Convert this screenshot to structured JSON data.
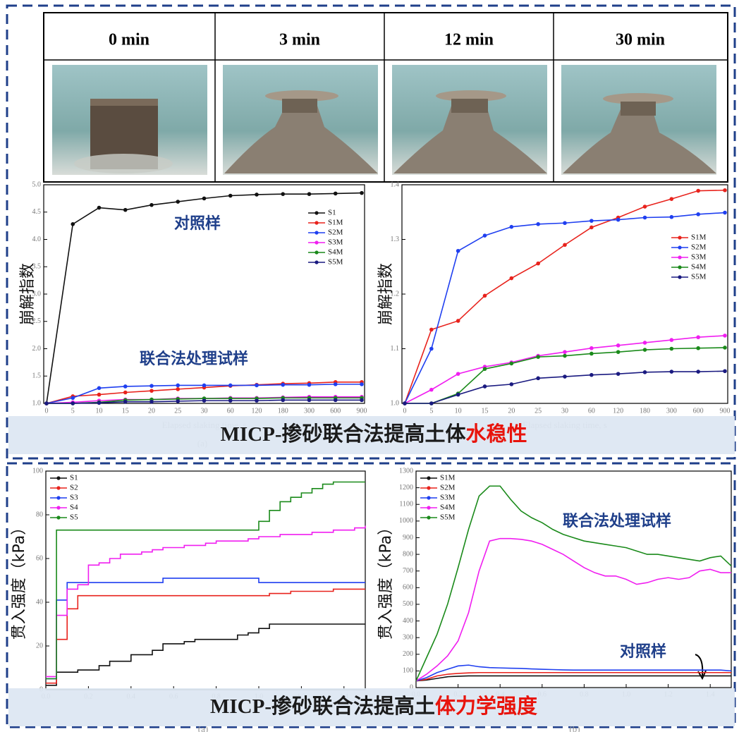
{
  "table": {
    "headers": [
      "0 min",
      "3 min",
      "12 min",
      "30 min"
    ]
  },
  "banners": [
    {
      "parts": [
        "MICP-掺砂联合法提高土体",
        "水稳性"
      ]
    },
    {
      "parts": [
        "MICP-掺砂联合法提高土",
        "体力学强度"
      ]
    }
  ],
  "chart_data": [
    {
      "type": "line",
      "ylabel": "崩解指数",
      "xlabel": "Elapsed slaking time, s",
      "caption": "(a)",
      "categories": [
        "0",
        "5",
        "10",
        "15",
        "20",
        "25",
        "30",
        "60",
        "120",
        "180",
        "300",
        "600",
        "900"
      ],
      "ylim": [
        1,
        5
      ],
      "yticks": [
        {
          "value": 1,
          "label": "1.0"
        },
        1.5,
        {
          "value": 2,
          "label": "2.0"
        },
        2.5,
        {
          "value": 3,
          "label": "3.0"
        },
        3.5,
        {
          "value": 4,
          "label": "4.0"
        },
        4.5,
        {
          "value": 5,
          "label": "5.0"
        }
      ],
      "legend": "upper right",
      "markers": true,
      "annotations": [
        "对照样",
        "联合法处理试样"
      ],
      "series": [
        {
          "name": "S1",
          "color": "#111111",
          "values": [
            1.0,
            4.28,
            4.58,
            4.54,
            4.63,
            4.69,
            4.75,
            4.8,
            4.82,
            4.83,
            4.83,
            4.84,
            4.85
          ]
        },
        {
          "name": "S1M",
          "color": "#e8221c",
          "values": [
            1.0,
            1.13,
            1.16,
            1.2,
            1.23,
            1.26,
            1.29,
            1.32,
            1.34,
            1.36,
            1.37,
            1.39,
            1.39
          ]
        },
        {
          "name": "S2M",
          "color": "#1f3ff0",
          "values": [
            1.0,
            1.1,
            1.28,
            1.31,
            1.32,
            1.33,
            1.33,
            1.33,
            1.33,
            1.34,
            1.34,
            1.35,
            1.35
          ]
        },
        {
          "name": "S3M",
          "color": "#f01ef0",
          "values": [
            1.0,
            1.02,
            1.05,
            1.07,
            1.07,
            1.09,
            1.09,
            1.1,
            1.1,
            1.11,
            1.12,
            1.12,
            1.12
          ]
        },
        {
          "name": "S4M",
          "color": "#1a8a1a",
          "values": [
            1.0,
            1.0,
            1.02,
            1.06,
            1.07,
            1.08,
            1.09,
            1.09,
            1.09,
            1.1,
            1.1,
            1.1,
            1.1
          ]
        },
        {
          "name": "S5M",
          "color": "#1a1a80",
          "values": [
            1.0,
            1.0,
            1.01,
            1.03,
            1.03,
            1.04,
            1.05,
            1.05,
            1.05,
            1.06,
            1.06,
            1.06,
            1.06
          ]
        }
      ]
    },
    {
      "type": "line",
      "ylabel": "崩解指数",
      "xlabel": "Elapsed slaking time, s",
      "categories": [
        "0",
        "5",
        "10",
        "15",
        "20",
        "25",
        "30",
        "60",
        "120",
        "180",
        "300",
        "600",
        "900"
      ],
      "ylim": [
        1,
        1.4
      ],
      "yticks": [
        {
          "value": 1,
          "label": "1.0"
        },
        1.1,
        1.2,
        1.3,
        1.4
      ],
      "legend": "center right",
      "markers": true,
      "series": [
        {
          "name": "S1M",
          "color": "#e8221c",
          "values": [
            1.0,
            1.135,
            1.151,
            1.197,
            1.229,
            1.256,
            1.29,
            1.322,
            1.34,
            1.36,
            1.374,
            1.389,
            1.39
          ]
        },
        {
          "name": "S2M",
          "color": "#1f3ff0",
          "values": [
            1.0,
            1.1,
            1.279,
            1.307,
            1.323,
            1.328,
            1.33,
            1.334,
            1.336,
            1.34,
            1.341,
            1.346,
            1.349
          ]
        },
        {
          "name": "S3M",
          "color": "#f01ef0",
          "values": [
            1.0,
            1.025,
            1.054,
            1.067,
            1.075,
            1.087,
            1.094,
            1.101,
            1.106,
            1.111,
            1.116,
            1.121,
            1.124
          ]
        },
        {
          "name": "S4M",
          "color": "#1a8a1a",
          "values": [
            1.0,
            1.0,
            1.018,
            1.063,
            1.073,
            1.085,
            1.087,
            1.091,
            1.094,
            1.098,
            1.1,
            1.101,
            1.102
          ]
        },
        {
          "name": "S5M",
          "color": "#1a1a80",
          "values": [
            1.0,
            1.0,
            1.016,
            1.031,
            1.035,
            1.046,
            1.049,
            1.052,
            1.054,
            1.057,
            1.058,
            1.058,
            1.059
          ]
        }
      ]
    },
    {
      "type": "line",
      "ylabel": "贯入强度（kPa）",
      "caption": "(a)",
      "drawstyle": "steps-post",
      "x": [
        0,
        0.05,
        0.1,
        0.15,
        0.2,
        0.25,
        0.3,
        0.35,
        0.4,
        0.45,
        0.5,
        0.55,
        0.6,
        0.65,
        0.7,
        0.75,
        0.8,
        0.85,
        0.9,
        0.95,
        1.0,
        1.05,
        1.1,
        1.15,
        1.2,
        1.25,
        1.3,
        1.35,
        1.4,
        1.45,
        1.5
      ],
      "xlim": [
        0,
        1.5
      ],
      "xticks": [
        {
          "value": 0,
          "label": "0.0"
        },
        0.2,
        0.4,
        0.6,
        0.8,
        {
          "value": 1,
          "label": "1.0"
        },
        1.2,
        1.4
      ],
      "ylim": [
        0,
        100
      ],
      "yticks": [
        0,
        20,
        40,
        60,
        80,
        100
      ],
      "legend": "upper left",
      "markers": false,
      "series": [
        {
          "name": "S1",
          "color": "#111111",
          "values": [
            2,
            8,
            8,
            9,
            9,
            11,
            13,
            13,
            16,
            16,
            18,
            21,
            21,
            22,
            23,
            23,
            23,
            23,
            25,
            26,
            28,
            30,
            30,
            30,
            30,
            30,
            30,
            30,
            30,
            30,
            30
          ]
        },
        {
          "name": "S2",
          "color": "#e8221c",
          "values": [
            3,
            23,
            37,
            43,
            43,
            43,
            43,
            43,
            43,
            43,
            43,
            43,
            43,
            43,
            43,
            43,
            43,
            43,
            43,
            43,
            43,
            44,
            44,
            45,
            45,
            45,
            45,
            46,
            46,
            46,
            46
          ]
        },
        {
          "name": "S3",
          "color": "#1f3ff0",
          "values": [
            5,
            41,
            49,
            49,
            49,
            49,
            49,
            49,
            49,
            49,
            49,
            51,
            51,
            51,
            51,
            51,
            51,
            51,
            51,
            51,
            49,
            49,
            49,
            49,
            49,
            49,
            49,
            49,
            49,
            49,
            49
          ]
        },
        {
          "name": "S4",
          "color": "#f01ef0",
          "values": [
            6,
            34,
            46,
            48,
            57,
            58,
            60,
            62,
            62,
            63,
            64,
            65,
            65,
            66,
            66,
            67,
            68,
            68,
            68,
            69,
            70,
            70,
            71,
            71,
            71,
            72,
            72,
            73,
            73,
            74,
            75
          ]
        },
        {
          "name": "S5",
          "color": "#1a8a1a",
          "values": [
            5,
            73,
            73,
            73,
            73,
            73,
            73,
            73,
            73,
            73,
            73,
            73,
            73,
            73,
            73,
            73,
            73,
            73,
            73,
            73,
            77,
            82,
            86,
            88,
            90,
            92,
            94,
            95,
            95,
            95,
            95
          ]
        }
      ]
    },
    {
      "type": "line",
      "ylabel": "贯入强度（kPa）",
      "caption": "(b)",
      "x": [
        0,
        0.05,
        0.1,
        0.15,
        0.2,
        0.25,
        0.3,
        0.35,
        0.4,
        0.45,
        0.5,
        0.55,
        0.6,
        0.65,
        0.7,
        0.75,
        0.8,
        0.85,
        0.9,
        0.95,
        1.0,
        1.05,
        1.1,
        1.15,
        1.2,
        1.25,
        1.3,
        1.35,
        1.4,
        1.45,
        1.5
      ],
      "xlim": [
        0,
        1.5
      ],
      "xticks": [
        {
          "value": 0,
          "label": "0.0"
        },
        0.2,
        0.4,
        0.6,
        0.8,
        {
          "value": 1,
          "label": "1.0"
        },
        1.2,
        1.4
      ],
      "ylim": [
        0,
        1300
      ],
      "yticks": [
        0,
        100,
        200,
        300,
        400,
        500,
        600,
        700,
        800,
        900,
        1000,
        1100,
        1200,
        1300
      ],
      "legend": "upper left",
      "markers": false,
      "annotations": [
        "联合法处理试样",
        "对照样"
      ],
      "series": [
        {
          "name": "S1M",
          "color": "#111111",
          "values": [
            40,
            45,
            55,
            65,
            68,
            70,
            70,
            70,
            70,
            70,
            70,
            70,
            70,
            70,
            70,
            70,
            70,
            70,
            70,
            70,
            70,
            70,
            70,
            70,
            70,
            70,
            70,
            70,
            70,
            70,
            70
          ]
        },
        {
          "name": "S2M",
          "color": "#e8221c",
          "values": [
            40,
            50,
            70,
            80,
            85,
            88,
            90,
            90,
            90,
            90,
            90,
            90,
            90,
            90,
            90,
            90,
            90,
            90,
            90,
            90,
            90,
            90,
            90,
            90,
            90,
            90,
            90,
            90,
            90,
            90,
            90
          ]
        },
        {
          "name": "S3M",
          "color": "#1f3ff0",
          "values": [
            40,
            60,
            90,
            110,
            130,
            135,
            125,
            120,
            118,
            116,
            115,
            112,
            110,
            108,
            106,
            105,
            105,
            105,
            105,
            105,
            105,
            105,
            105,
            105,
            105,
            105,
            105,
            105,
            105,
            105,
            100
          ]
        },
        {
          "name": "S4M",
          "color": "#f01ef0",
          "values": [
            40,
            80,
            130,
            190,
            280,
            450,
            700,
            880,
            895,
            895,
            890,
            880,
            860,
            830,
            800,
            760,
            720,
            690,
            670,
            670,
            650,
            620,
            630,
            650,
            660,
            650,
            660,
            700,
            710,
            690,
            690
          ]
        },
        {
          "name": "S5M",
          "color": "#1a8a1a",
          "values": [
            40,
            180,
            320,
            500,
            720,
            950,
            1150,
            1210,
            1210,
            1130,
            1060,
            1020,
            990,
            950,
            920,
            900,
            880,
            870,
            860,
            850,
            840,
            820,
            800,
            800,
            790,
            780,
            770,
            760,
            780,
            790,
            730
          ]
        }
      ]
    }
  ]
}
